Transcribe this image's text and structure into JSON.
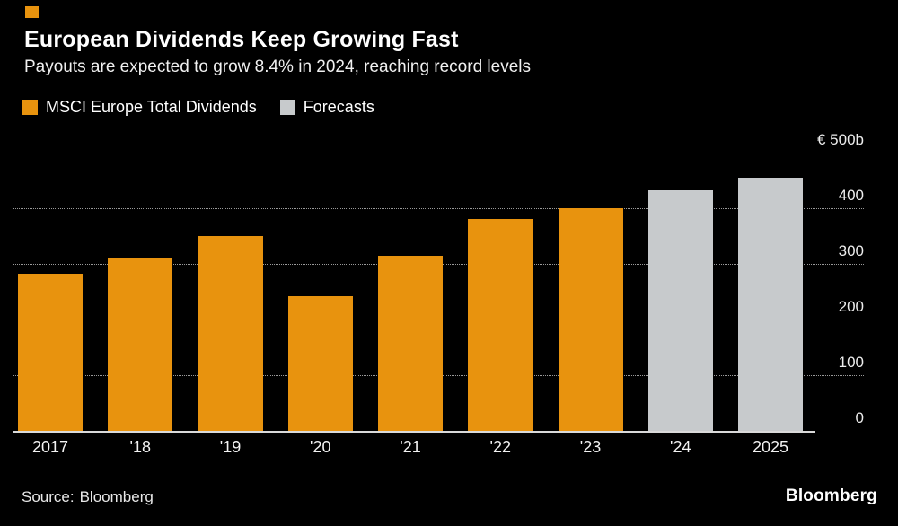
{
  "chart_data": {
    "type": "bar",
    "title": "European Dividends Keep Growing Fast",
    "subtitle": "Payouts are expected to grow 8.4% in 2024, reaching record levels",
    "categories": [
      "2017",
      "'18",
      "'19",
      "'20",
      "'21",
      "'22",
      "'23",
      "'24",
      "2025"
    ],
    "series": [
      {
        "name": "MSCI Europe Total Dividends",
        "color": "#E8930E",
        "values": [
          283,
          312,
          350,
          242,
          315,
          380,
          400,
          null,
          null
        ]
      },
      {
        "name": "Forecasts",
        "color": "#C7CACC",
        "values": [
          null,
          null,
          null,
          null,
          null,
          null,
          null,
          433,
          455
        ]
      }
    ],
    "ylim": [
      0,
      500
    ],
    "yticks": [
      0,
      100,
      200,
      300,
      400,
      500
    ],
    "y_axis_top_label": "€ 500b",
    "unit": "€b",
    "grid": "horizontal-dotted",
    "legend_position": "top-left"
  },
  "footer": {
    "source_label": "Source:",
    "source_value": "Bloomberg",
    "brand": "Bloomberg"
  }
}
